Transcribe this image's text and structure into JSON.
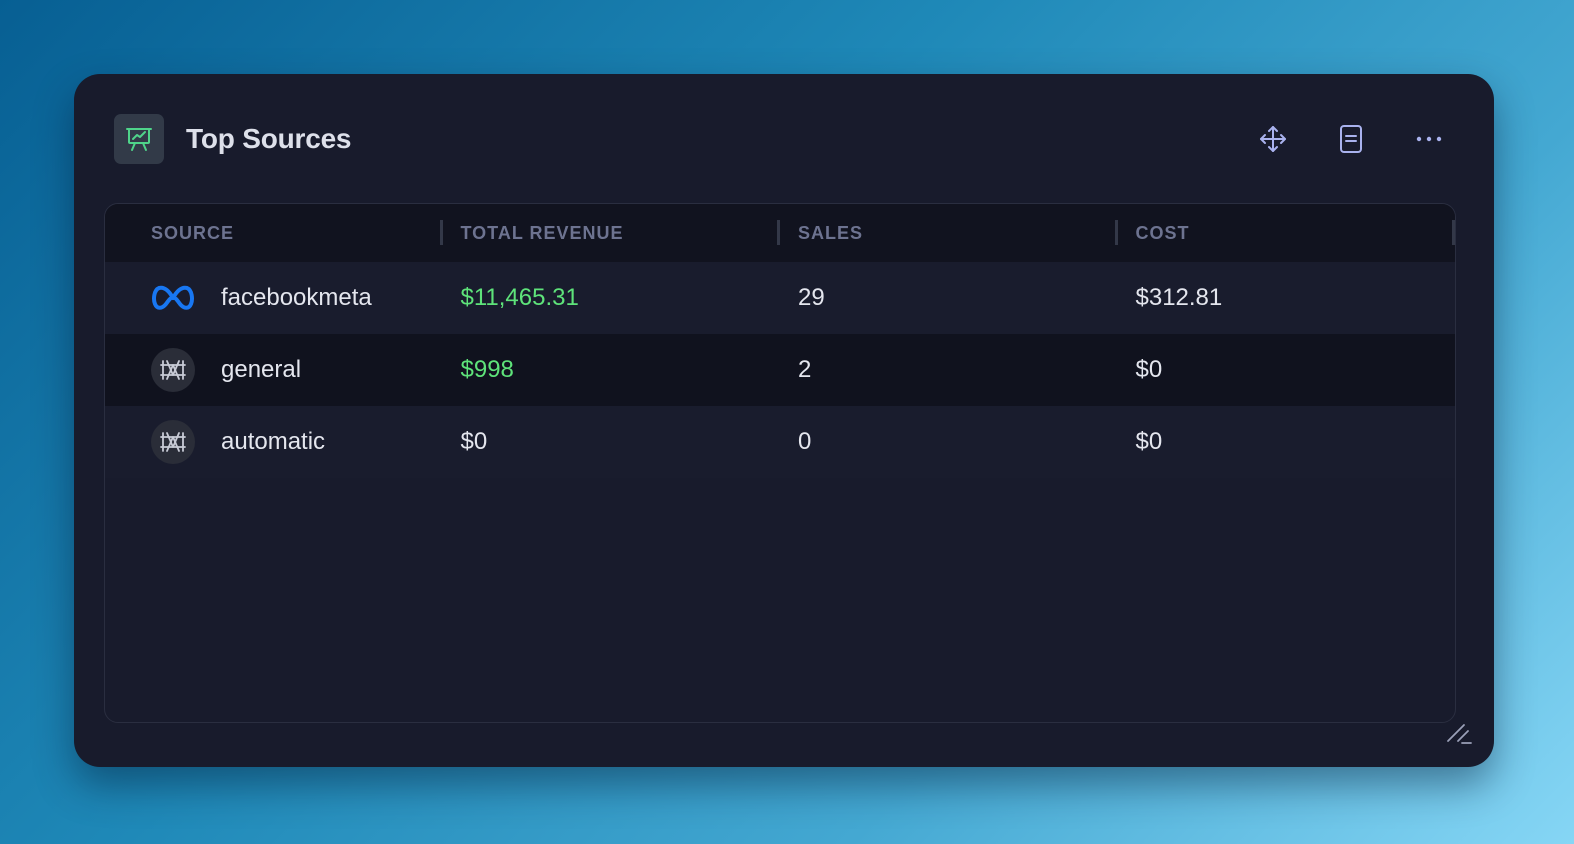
{
  "widget": {
    "title": "Top Sources",
    "accent_color": "#5ee37a",
    "icons": {
      "title": "presentation-chart-icon",
      "move": "move-arrows-icon",
      "details": "document-icon",
      "menu": "more-horizontal-icon",
      "resize": "resize-handle-icon"
    }
  },
  "table": {
    "columns": [
      "SOURCE",
      "TOTAL REVENUE",
      "SALES",
      "COST"
    ],
    "rows": [
      {
        "source": "facebookmeta",
        "icon": "meta-logo-icon",
        "revenue": "$11,465.31",
        "revenue_highlight": true,
        "sales": "29",
        "cost": "$312.81"
      },
      {
        "source": "general",
        "icon": "app-logo-icon",
        "revenue": "$998",
        "revenue_highlight": true,
        "sales": "2",
        "cost": "$0"
      },
      {
        "source": "automatic",
        "icon": "app-logo-icon",
        "revenue": "$0",
        "revenue_highlight": false,
        "sales": "0",
        "cost": "$0"
      }
    ]
  }
}
